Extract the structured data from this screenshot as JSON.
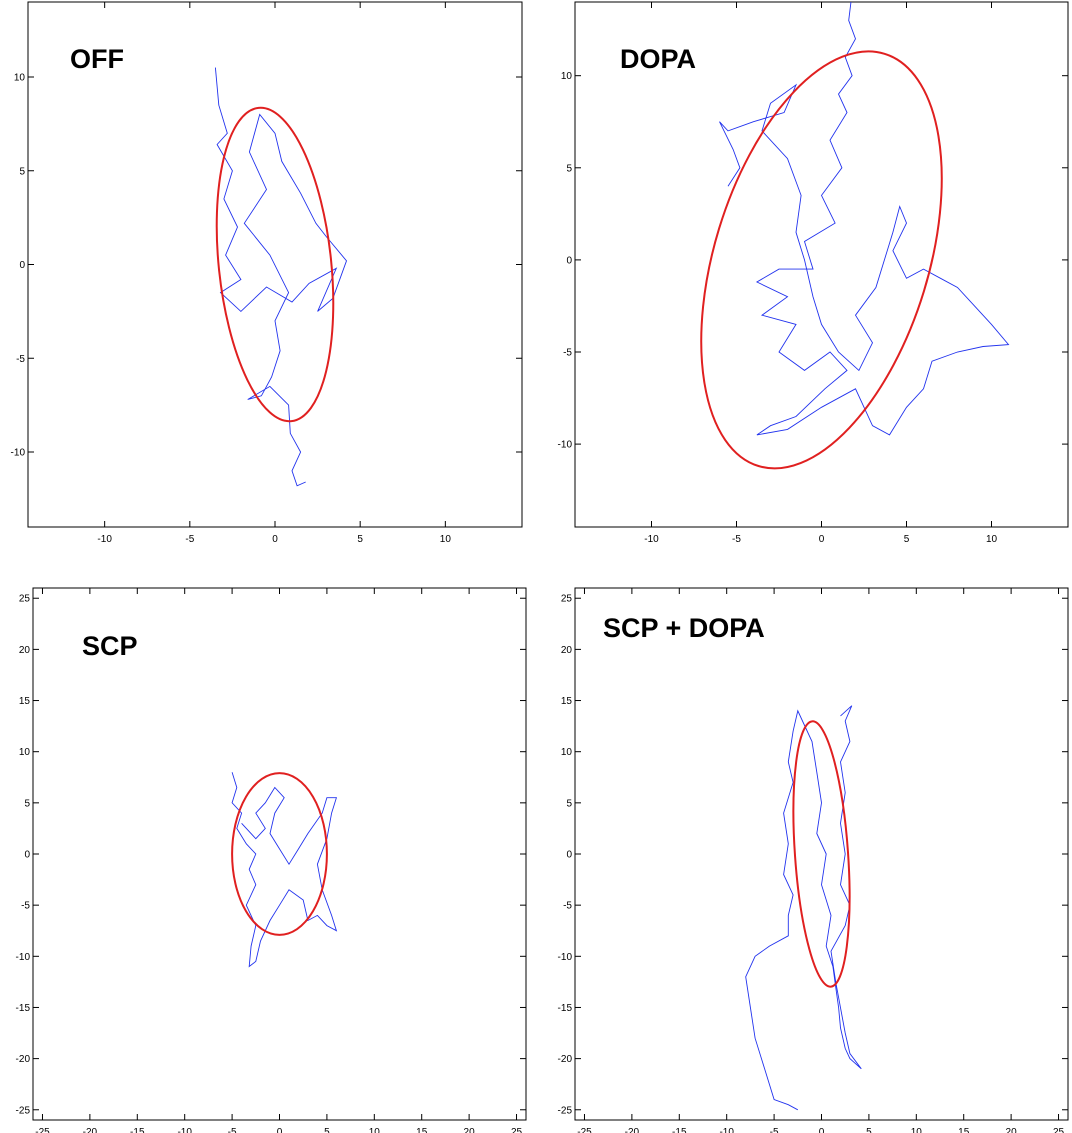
{
  "colors": {
    "trace": "#2233ee",
    "ellipse": "#e02020",
    "axis": "#000000"
  },
  "chart_data": [
    {
      "type": "scatter",
      "title": "OFF",
      "xlabel": "",
      "ylabel": "",
      "xlim": [
        -14.5,
        14.5
      ],
      "ylim": [
        -14,
        14
      ],
      "xticks": [
        -10,
        -5,
        0,
        5,
        10
      ],
      "yticks": [
        -10,
        -5,
        0,
        5,
        10
      ],
      "grid": false,
      "trace_path": [
        [
          -3.5,
          10.5
        ],
        [
          -3.3,
          8.5
        ],
        [
          -2.8,
          7.0
        ],
        [
          -3.4,
          6.4
        ],
        [
          -2.5,
          5.0
        ],
        [
          -3.0,
          3.5
        ],
        [
          -2.2,
          2.0
        ],
        [
          -2.9,
          0.5
        ],
        [
          -2.0,
          -0.8
        ],
        [
          -3.2,
          -1.5
        ],
        [
          -2.0,
          -2.5
        ],
        [
          -0.5,
          -1.2
        ],
        [
          1.0,
          -2.0
        ],
        [
          2.0,
          -1.0
        ],
        [
          3.6,
          -0.2
        ],
        [
          2.5,
          -2.5
        ],
        [
          3.4,
          -1.8
        ],
        [
          4.2,
          0.2
        ],
        [
          3.0,
          1.5
        ],
        [
          2.4,
          2.2
        ],
        [
          1.5,
          3.8
        ],
        [
          0.4,
          5.5
        ],
        [
          0.0,
          7.0
        ],
        [
          -0.9,
          8.0
        ],
        [
          -1.5,
          6.0
        ],
        [
          -0.5,
          4.0
        ],
        [
          -1.8,
          2.2
        ],
        [
          -0.3,
          0.5
        ],
        [
          0.8,
          -1.5
        ],
        [
          0.0,
          -3.0
        ],
        [
          0.3,
          -4.6
        ],
        [
          -0.2,
          -6.0
        ],
        [
          -0.8,
          -7.0
        ],
        [
          -1.6,
          -7.2
        ],
        [
          -0.3,
          -6.5
        ],
        [
          0.8,
          -7.5
        ],
        [
          0.9,
          -9.0
        ],
        [
          1.5,
          -10.0
        ],
        [
          1.0,
          -11.0
        ],
        [
          1.3,
          -11.8
        ],
        [
          1.8,
          -11.6
        ]
      ],
      "ellipse": {
        "cx": 0,
        "cy": 0,
        "rx": 3.3,
        "ry": 8.4,
        "angle_deg": -6
      }
    },
    {
      "type": "scatter",
      "title": "DOPA",
      "xlabel": "",
      "ylabel": "",
      "xlim": [
        -14.5,
        14.5
      ],
      "ylim": [
        -14.5,
        14
      ],
      "xticks": [
        -10,
        -5,
        0,
        5,
        10
      ],
      "yticks": [
        -10,
        -5,
        0,
        5,
        10
      ],
      "grid": false,
      "trace_path": [
        [
          1.8,
          14.5
        ],
        [
          1.6,
          13.0
        ],
        [
          2.0,
          12.0
        ],
        [
          1.4,
          11.0
        ],
        [
          1.8,
          10.0
        ],
        [
          1.0,
          9.0
        ],
        [
          1.5,
          8.0
        ],
        [
          0.5,
          6.5
        ],
        [
          1.2,
          5.0
        ],
        [
          0.0,
          3.5
        ],
        [
          0.8,
          2.0
        ],
        [
          -1.0,
          1.0
        ],
        [
          -0.5,
          -0.5
        ],
        [
          -2.5,
          -0.5
        ],
        [
          -3.8,
          -1.2
        ],
        [
          -2.0,
          -2.0
        ],
        [
          -3.5,
          -3.0
        ],
        [
          -1.5,
          -3.5
        ],
        [
          -2.5,
          -5.0
        ],
        [
          -1.0,
          -6.0
        ],
        [
          0.5,
          -5.0
        ],
        [
          1.5,
          -6.0
        ],
        [
          0.2,
          -7.0
        ],
        [
          -1.5,
          -8.5
        ],
        [
          -3.0,
          -9.0
        ],
        [
          -3.8,
          -9.5
        ],
        [
          -2.0,
          -9.2
        ],
        [
          0.0,
          -8.0
        ],
        [
          2.0,
          -7.0
        ],
        [
          3.0,
          -9.0
        ],
        [
          4.0,
          -9.5
        ],
        [
          5.0,
          -8.0
        ],
        [
          6.0,
          -7.0
        ],
        [
          6.5,
          -5.5
        ],
        [
          8.0,
          -5.0
        ],
        [
          9.5,
          -4.7
        ],
        [
          11.0,
          -4.6
        ],
        [
          10.0,
          -3.5
        ],
        [
          9.0,
          -2.5
        ],
        [
          8.0,
          -1.5
        ],
        [
          7.0,
          -1.0
        ],
        [
          6.0,
          -0.5
        ],
        [
          5.0,
          -1.0
        ],
        [
          4.2,
          0.5
        ],
        [
          5.0,
          2.0
        ],
        [
          4.6,
          2.9
        ],
        [
          4.2,
          1.5
        ],
        [
          3.2,
          -1.5
        ],
        [
          2.0,
          -3.0
        ],
        [
          3.0,
          -4.5
        ],
        [
          2.2,
          -6.0
        ],
        [
          1.0,
          -5.0
        ],
        [
          0.0,
          -3.5
        ],
        [
          -0.5,
          -2.0
        ],
        [
          -1.0,
          0.0
        ],
        [
          -1.5,
          1.5
        ],
        [
          -1.2,
          3.5
        ],
        [
          -2.0,
          5.5
        ],
        [
          -3.5,
          7.0
        ],
        [
          -3.0,
          8.5
        ],
        [
          -1.5,
          9.5
        ],
        [
          -2.2,
          8.0
        ],
        [
          -4.0,
          7.5
        ],
        [
          -5.5,
          7.0
        ],
        [
          -6.0,
          7.5
        ],
        [
          -5.2,
          6.0
        ],
        [
          -4.8,
          5.0
        ],
        [
          -5.5,
          4.0
        ]
      ],
      "ellipse": {
        "cx": 0,
        "cy": 0,
        "rx": 6.3,
        "ry": 11.7,
        "angle_deg": 17
      }
    },
    {
      "type": "scatter",
      "title": "SCP",
      "xlabel": "",
      "ylabel": "",
      "xlim": [
        -26,
        26
      ],
      "ylim": [
        -26,
        26
      ],
      "xticks": [
        -25,
        -20,
        -15,
        -10,
        -5,
        0,
        5,
        10,
        15,
        20,
        25
      ],
      "yticks": [
        -25,
        -20,
        -15,
        -10,
        -5,
        0,
        5,
        10,
        15,
        20,
        25
      ],
      "grid": false,
      "trace_path": [
        [
          -5.0,
          8.0
        ],
        [
          -4.5,
          6.5
        ],
        [
          -5.0,
          5.0
        ],
        [
          -4.0,
          4.0
        ],
        [
          -4.5,
          2.5
        ],
        [
          -3.5,
          1.0
        ],
        [
          -2.5,
          0.0
        ],
        [
          -3.2,
          -1.5
        ],
        [
          -2.5,
          -3.0
        ],
        [
          -3.5,
          -5.0
        ],
        [
          -2.5,
          -7.0
        ],
        [
          -3.0,
          -9.0
        ],
        [
          -3.2,
          -11.0
        ],
        [
          -2.5,
          -10.5
        ],
        [
          -2.0,
          -8.5
        ],
        [
          -1.0,
          -6.5
        ],
        [
          0.0,
          -5.0
        ],
        [
          1.0,
          -3.5
        ],
        [
          2.5,
          -4.5
        ],
        [
          3.0,
          -6.5
        ],
        [
          4.0,
          -6.0
        ],
        [
          5.0,
          -7.0
        ],
        [
          6.0,
          -7.5
        ],
        [
          5.5,
          -6.0
        ],
        [
          4.5,
          -3.5
        ],
        [
          4.0,
          -1.0
        ],
        [
          5.0,
          1.5
        ],
        [
          5.5,
          4.0
        ],
        [
          6.0,
          5.5
        ],
        [
          5.0,
          5.5
        ],
        [
          4.5,
          4.0
        ],
        [
          3.0,
          2.0
        ],
        [
          2.0,
          0.5
        ],
        [
          1.0,
          -1.0
        ],
        [
          0.0,
          0.5
        ],
        [
          -1.0,
          2.0
        ],
        [
          -0.5,
          4.0
        ],
        [
          0.5,
          5.5
        ],
        [
          -0.5,
          6.5
        ],
        [
          -1.5,
          5.0
        ],
        [
          -2.5,
          4.0
        ],
        [
          -1.5,
          2.5
        ],
        [
          -2.5,
          1.5
        ],
        [
          -4.0,
          3.0
        ]
      ],
      "ellipse": {
        "cx": 0,
        "cy": 0,
        "rx": 5.0,
        "ry": 7.9,
        "angle_deg": 0
      }
    },
    {
      "type": "scatter",
      "title": "SCP + DOPA",
      "xlabel": "",
      "ylabel": "",
      "xlim": [
        -26,
        26
      ],
      "ylim": [
        -26,
        26
      ],
      "xticks": [
        -25,
        -20,
        -15,
        -10,
        -5,
        0,
        5,
        10,
        15,
        20,
        25
      ],
      "yticks": [
        -25,
        -20,
        -15,
        -10,
        -5,
        0,
        5,
        10,
        15,
        20,
        25
      ],
      "grid": false,
      "trace_path": [
        [
          -2.5,
          -25.0
        ],
        [
          -3.5,
          -24.5
        ],
        [
          -5.0,
          -24.0
        ],
        [
          -6.0,
          -21.0
        ],
        [
          -7.0,
          -18.0
        ],
        [
          -7.5,
          -15.0
        ],
        [
          -8.0,
          -12.0
        ],
        [
          -7.0,
          -10.0
        ],
        [
          -5.5,
          -9.0
        ],
        [
          -3.5,
          -8.0
        ],
        [
          -3.5,
          -6.0
        ],
        [
          -3.0,
          -4.0
        ],
        [
          -4.0,
          -2.0
        ],
        [
          -3.5,
          1.0
        ],
        [
          -4.0,
          4.0
        ],
        [
          -3.0,
          7.0
        ],
        [
          -3.5,
          9.0
        ],
        [
          -3.0,
          12.0
        ],
        [
          -2.5,
          14.0
        ],
        [
          -2.0,
          13.0
        ],
        [
          -1.0,
          11.0
        ],
        [
          -0.5,
          8.0
        ],
        [
          0.0,
          5.0
        ],
        [
          -0.5,
          2.0
        ],
        [
          0.5,
          0.0
        ],
        [
          0.0,
          -3.0
        ],
        [
          1.0,
          -6.0
        ],
        [
          0.5,
          -9.0
        ],
        [
          1.2,
          -11.0
        ],
        [
          1.5,
          -13.0
        ],
        [
          1.8,
          -15.0
        ],
        [
          2.0,
          -17.0
        ],
        [
          2.5,
          -19.0
        ],
        [
          3.0,
          -20.0
        ],
        [
          4.2,
          -21.0
        ],
        [
          3.0,
          -19.5
        ],
        [
          2.5,
          -17.5
        ],
        [
          1.5,
          -12.5
        ],
        [
          1.0,
          -9.5
        ],
        [
          2.5,
          -7.0
        ],
        [
          3.0,
          -5.0
        ],
        [
          2.0,
          -3.0
        ],
        [
          2.5,
          0.0
        ],
        [
          2.0,
          3.0
        ],
        [
          2.5,
          6.0
        ],
        [
          2.0,
          9.0
        ],
        [
          3.0,
          11.0
        ],
        [
          2.5,
          13.0
        ],
        [
          3.2,
          14.5
        ],
        [
          2.0,
          13.5
        ]
      ],
      "ellipse": {
        "cx": 0,
        "cy": 0,
        "rx": 2.8,
        "ry": 13.0,
        "angle_deg": -4
      }
    }
  ]
}
